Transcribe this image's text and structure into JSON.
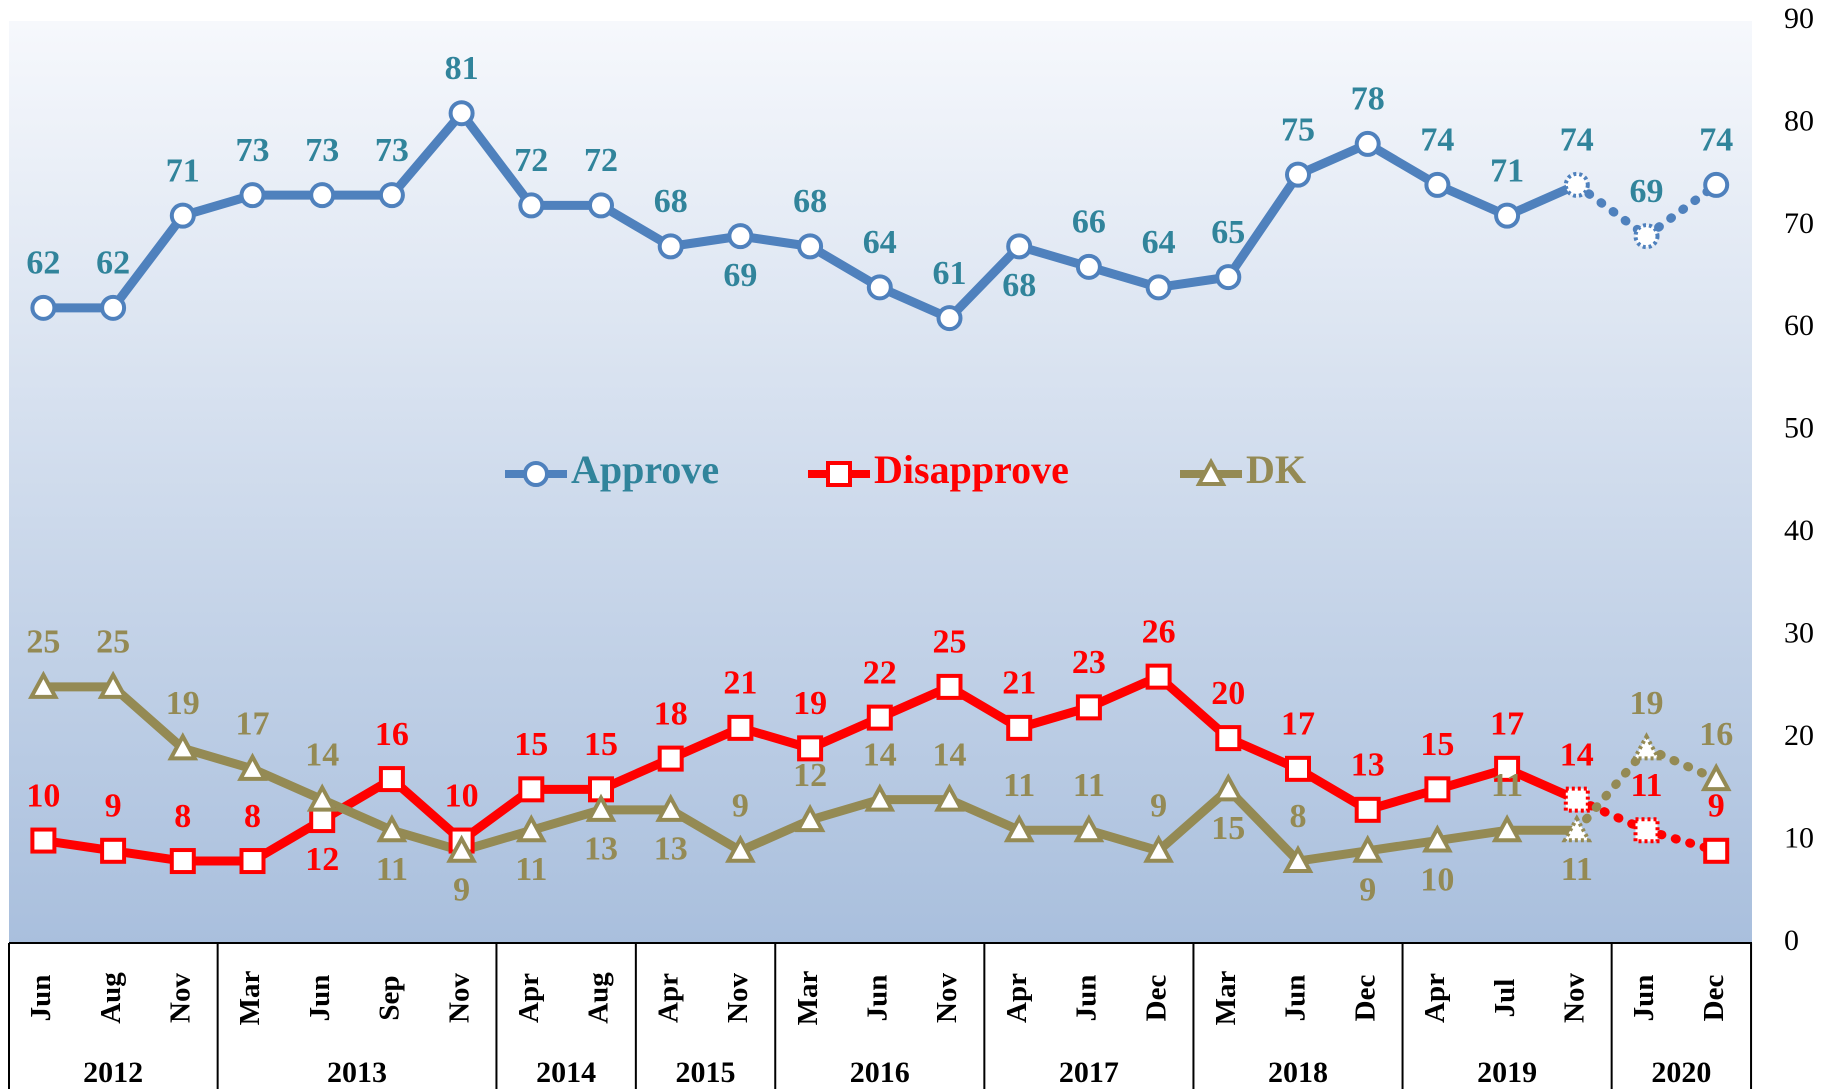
{
  "chart_data": {
    "type": "line",
    "category_groups": [
      {
        "label": "2012",
        "categories": [
          "Jun",
          "Aug",
          "Nov"
        ]
      },
      {
        "label": "2013",
        "categories": [
          "Mar",
          "Jun",
          "Sep",
          "Nov"
        ]
      },
      {
        "label": "2014",
        "categories": [
          "Apr",
          "Aug"
        ]
      },
      {
        "label": "2015",
        "categories": [
          "Apr",
          "Nov"
        ]
      },
      {
        "label": "2016",
        "categories": [
          "Mar",
          "Jun",
          "Nov"
        ]
      },
      {
        "label": "2017",
        "categories": [
          "Apr",
          "Jun",
          "Dec"
        ]
      },
      {
        "label": "2018",
        "categories": [
          "Mar",
          "Jun",
          "Dec"
        ]
      },
      {
        "label": "2019",
        "categories": [
          "Apr",
          "Jul",
          "Nov"
        ]
      },
      {
        "label": "2020",
        "categories": [
          "Jun",
          "Dec"
        ]
      }
    ],
    "series": [
      {
        "name": "Approve",
        "color": "#4f81bd",
        "label_color": "#31849b",
        "marker": "circle",
        "values": [
          62,
          62,
          71,
          73,
          73,
          73,
          81,
          72,
          72,
          68,
          69,
          68,
          64,
          61,
          68,
          66,
          64,
          65,
          75,
          78,
          74,
          71,
          74,
          69,
          74
        ]
      },
      {
        "name": "Disapprove",
        "color": "#ff0000",
        "label_color": "#ff0000",
        "marker": "square",
        "values": [
          10,
          9,
          8,
          8,
          12,
          16,
          10,
          15,
          15,
          18,
          21,
          19,
          22,
          25,
          21,
          23,
          26,
          20,
          17,
          13,
          15,
          17,
          14,
          11,
          9
        ]
      },
      {
        "name": "DK",
        "color": "#948a54",
        "label_color": "#948a54",
        "marker": "triangle",
        "values": [
          25,
          25,
          19,
          17,
          14,
          11,
          9,
          11,
          13,
          13,
          9,
          12,
          14,
          14,
          11,
          11,
          9,
          15,
          8,
          9,
          10,
          11,
          11,
          19,
          16
        ]
      }
    ],
    "dotted_from_index": 22,
    "ylim": [
      0,
      90
    ],
    "yticks": [
      0,
      10,
      20,
      30,
      40,
      50,
      60,
      70,
      80,
      90
    ],
    "y_axis_side": "right",
    "legend": "center"
  }
}
